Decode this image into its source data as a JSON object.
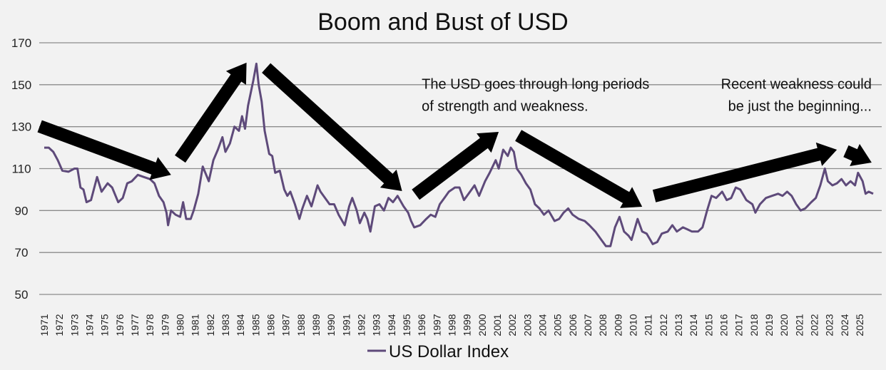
{
  "chart_data": {
    "type": "line",
    "title": "Boom and Bust of USD",
    "xlabel": "",
    "ylabel": "",
    "ylim": [
      50,
      170
    ],
    "yticks": [
      50,
      70,
      90,
      110,
      130,
      150,
      170
    ],
    "xlim": [
      1971,
      2025.9
    ],
    "xticks": [
      "1971",
      "1972",
      "1973",
      "1974",
      "1975",
      "1976",
      "1977",
      "1978",
      "1979",
      "1980",
      "1981",
      "1982",
      "1983",
      "1984",
      "1985",
      "1986",
      "1987",
      "1988",
      "1989",
      "1990",
      "1991",
      "1992",
      "1993",
      "1994",
      "1995",
      "1996",
      "1997",
      "1998",
      "1999",
      "2000",
      "2001",
      "2002",
      "2003",
      "2004",
      "2005",
      "2006",
      "2007",
      "2008",
      "2009",
      "2010",
      "2011",
      "2012",
      "2013",
      "2014",
      "2015",
      "2016",
      "2017",
      "2018",
      "2019",
      "2020",
      "2021",
      "2022",
      "2023",
      "2024",
      "2025"
    ],
    "grid": true,
    "legend": {
      "position": "bottom",
      "entries": [
        "US Dollar Index"
      ]
    },
    "series": [
      {
        "name": "US Dollar Index",
        "color": "#5e4a7a",
        "points": [
          [
            1971.0,
            120
          ],
          [
            1971.3,
            120
          ],
          [
            1971.6,
            118
          ],
          [
            1971.9,
            114
          ],
          [
            1972.2,
            109
          ],
          [
            1972.6,
            108.5
          ],
          [
            1973.0,
            110
          ],
          [
            1973.2,
            110
          ],
          [
            1973.4,
            101
          ],
          [
            1973.6,
            100
          ],
          [
            1973.8,
            94
          ],
          [
            1974.1,
            95
          ],
          [
            1974.5,
            106
          ],
          [
            1974.8,
            99
          ],
          [
            1975.2,
            103
          ],
          [
            1975.5,
            101
          ],
          [
            1975.9,
            94
          ],
          [
            1976.2,
            96
          ],
          [
            1976.5,
            103
          ],
          [
            1976.8,
            104
          ],
          [
            1977.2,
            107
          ],
          [
            1977.6,
            106
          ],
          [
            1978.0,
            105
          ],
          [
            1978.3,
            103
          ],
          [
            1978.6,
            97
          ],
          [
            1978.9,
            94
          ],
          [
            1979.1,
            89
          ],
          [
            1979.2,
            83
          ],
          [
            1979.4,
            90
          ],
          [
            1979.7,
            88
          ],
          [
            1980.0,
            87
          ],
          [
            1980.2,
            94
          ],
          [
            1980.4,
            86
          ],
          [
            1980.7,
            86
          ],
          [
            1980.9,
            90
          ],
          [
            1981.2,
            98
          ],
          [
            1981.5,
            111
          ],
          [
            1981.9,
            104
          ],
          [
            1982.2,
            114
          ],
          [
            1982.5,
            119
          ],
          [
            1982.8,
            125
          ],
          [
            1983.0,
            118
          ],
          [
            1983.3,
            122
          ],
          [
            1983.6,
            130
          ],
          [
            1983.9,
            128
          ],
          [
            1984.1,
            135
          ],
          [
            1984.3,
            129
          ],
          [
            1984.5,
            140
          ],
          [
            1984.7,
            147
          ],
          [
            1984.85,
            152
          ],
          [
            1985.05,
            160
          ],
          [
            1985.2,
            150
          ],
          [
            1985.4,
            142
          ],
          [
            1985.6,
            128
          ],
          [
            1985.9,
            117
          ],
          [
            1986.1,
            116
          ],
          [
            1986.3,
            108
          ],
          [
            1986.6,
            109
          ],
          [
            1986.9,
            100
          ],
          [
            1987.1,
            97
          ],
          [
            1987.3,
            99
          ],
          [
            1987.6,
            93
          ],
          [
            1987.9,
            86
          ],
          [
            1988.1,
            91
          ],
          [
            1988.4,
            97
          ],
          [
            1988.7,
            92
          ],
          [
            1988.9,
            97
          ],
          [
            1989.1,
            102
          ],
          [
            1989.3,
            99
          ],
          [
            1989.6,
            96
          ],
          [
            1989.9,
            93
          ],
          [
            1990.2,
            93
          ],
          [
            1990.5,
            88
          ],
          [
            1990.9,
            83
          ],
          [
            1991.2,
            92
          ],
          [
            1991.4,
            96
          ],
          [
            1991.7,
            90
          ],
          [
            1991.9,
            84
          ],
          [
            1992.2,
            89
          ],
          [
            1992.4,
            86
          ],
          [
            1992.6,
            80
          ],
          [
            1992.9,
            92
          ],
          [
            1993.2,
            93
          ],
          [
            1993.5,
            90
          ],
          [
            1993.8,
            96
          ],
          [
            1994.1,
            94
          ],
          [
            1994.4,
            97
          ],
          [
            1994.8,
            92
          ],
          [
            1995.1,
            89
          ],
          [
            1995.3,
            85
          ],
          [
            1995.5,
            82
          ],
          [
            1995.9,
            83
          ],
          [
            1996.3,
            86
          ],
          [
            1996.6,
            88
          ],
          [
            1996.9,
            87
          ],
          [
            1997.2,
            93
          ],
          [
            1997.5,
            96
          ],
          [
            1997.8,
            99
          ],
          [
            1998.2,
            101
          ],
          [
            1998.5,
            101
          ],
          [
            1998.8,
            95
          ],
          [
            1999.2,
            99
          ],
          [
            1999.5,
            102
          ],
          [
            1999.8,
            97
          ],
          [
            2000.2,
            104
          ],
          [
            2000.5,
            108
          ],
          [
            2000.9,
            114
          ],
          [
            2001.1,
            110
          ],
          [
            2001.4,
            119
          ],
          [
            2001.7,
            116
          ],
          [
            2001.9,
            120
          ],
          [
            2002.1,
            118
          ],
          [
            2002.3,
            110
          ],
          [
            2002.6,
            107
          ],
          [
            2002.9,
            103
          ],
          [
            2003.2,
            100
          ],
          [
            2003.5,
            93
          ],
          [
            2003.8,
            91
          ],
          [
            2004.1,
            88
          ],
          [
            2004.4,
            90
          ],
          [
            2004.8,
            85
          ],
          [
            2005.1,
            86
          ],
          [
            2005.4,
            89
          ],
          [
            2005.7,
            91
          ],
          [
            2006.0,
            88
          ],
          [
            2006.4,
            86
          ],
          [
            2006.8,
            85
          ],
          [
            2007.1,
            83
          ],
          [
            2007.5,
            80
          ],
          [
            2007.9,
            76
          ],
          [
            2008.2,
            73
          ],
          [
            2008.5,
            73
          ],
          [
            2008.8,
            82
          ],
          [
            2009.1,
            87
          ],
          [
            2009.4,
            80
          ],
          [
            2009.7,
            78
          ],
          [
            2009.9,
            76
          ],
          [
            2010.3,
            86
          ],
          [
            2010.6,
            80
          ],
          [
            2010.9,
            79
          ],
          [
            2011.3,
            74
          ],
          [
            2011.6,
            75
          ],
          [
            2011.9,
            79
          ],
          [
            2012.3,
            80
          ],
          [
            2012.6,
            83
          ],
          [
            2012.9,
            80
          ],
          [
            2013.3,
            82
          ],
          [
            2013.6,
            81
          ],
          [
            2013.9,
            80
          ],
          [
            2014.3,
            80
          ],
          [
            2014.6,
            82
          ],
          [
            2014.9,
            90
          ],
          [
            2015.2,
            97
          ],
          [
            2015.5,
            96
          ],
          [
            2015.9,
            99
          ],
          [
            2016.2,
            95
          ],
          [
            2016.5,
            96
          ],
          [
            2016.8,
            101
          ],
          [
            2017.1,
            100
          ],
          [
            2017.5,
            95
          ],
          [
            2017.9,
            93
          ],
          [
            2018.1,
            89
          ],
          [
            2018.4,
            93
          ],
          [
            2018.8,
            96
          ],
          [
            2019.2,
            97
          ],
          [
            2019.6,
            98
          ],
          [
            2019.9,
            97
          ],
          [
            2020.2,
            99
          ],
          [
            2020.5,
            97
          ],
          [
            2020.8,
            93
          ],
          [
            2021.1,
            90
          ],
          [
            2021.4,
            91
          ],
          [
            2021.8,
            94
          ],
          [
            2022.1,
            96
          ],
          [
            2022.4,
            102
          ],
          [
            2022.7,
            110
          ],
          [
            2022.9,
            104
          ],
          [
            2023.2,
            102
          ],
          [
            2023.5,
            103
          ],
          [
            2023.8,
            105
          ],
          [
            2024.1,
            102
          ],
          [
            2024.4,
            104
          ],
          [
            2024.7,
            102
          ],
          [
            2024.9,
            108
          ],
          [
            2025.2,
            104
          ],
          [
            2025.4,
            98
          ],
          [
            2025.6,
            99
          ],
          [
            2025.9,
            98
          ]
        ]
      }
    ],
    "annotations": {
      "texts": [
        {
          "lines": [
            "The USD goes through long periods",
            "of strength and weakness."
          ],
          "anchor": "start",
          "at": [
            1996.0,
            148
          ]
        },
        {
          "lines": [
            "Recent weakness could",
            "be just the beginning..."
          ],
          "anchor": "end",
          "at": [
            2025.8,
            148
          ]
        }
      ],
      "arrows": [
        [
          [
            1970.7,
            130.2
          ],
          [
            1979.4,
            107
          ]
        ],
        [
          [
            1980.0,
            114.6
          ],
          [
            1984.4,
            160.5
          ]
        ],
        [
          [
            1985.7,
            158
          ],
          [
            1994.7,
            99.3
          ]
        ],
        [
          [
            1995.6,
            97.6
          ],
          [
            2001.1,
            127.5
          ]
        ],
        [
          [
            2002.4,
            125.8
          ],
          [
            2010.6,
            91.8
          ]
        ],
        [
          [
            2011.4,
            96.9
          ],
          [
            2023.5,
            119
          ]
        ],
        [
          [
            2024.1,
            118.3
          ],
          [
            2025.8,
            112.9
          ]
        ]
      ]
    }
  }
}
